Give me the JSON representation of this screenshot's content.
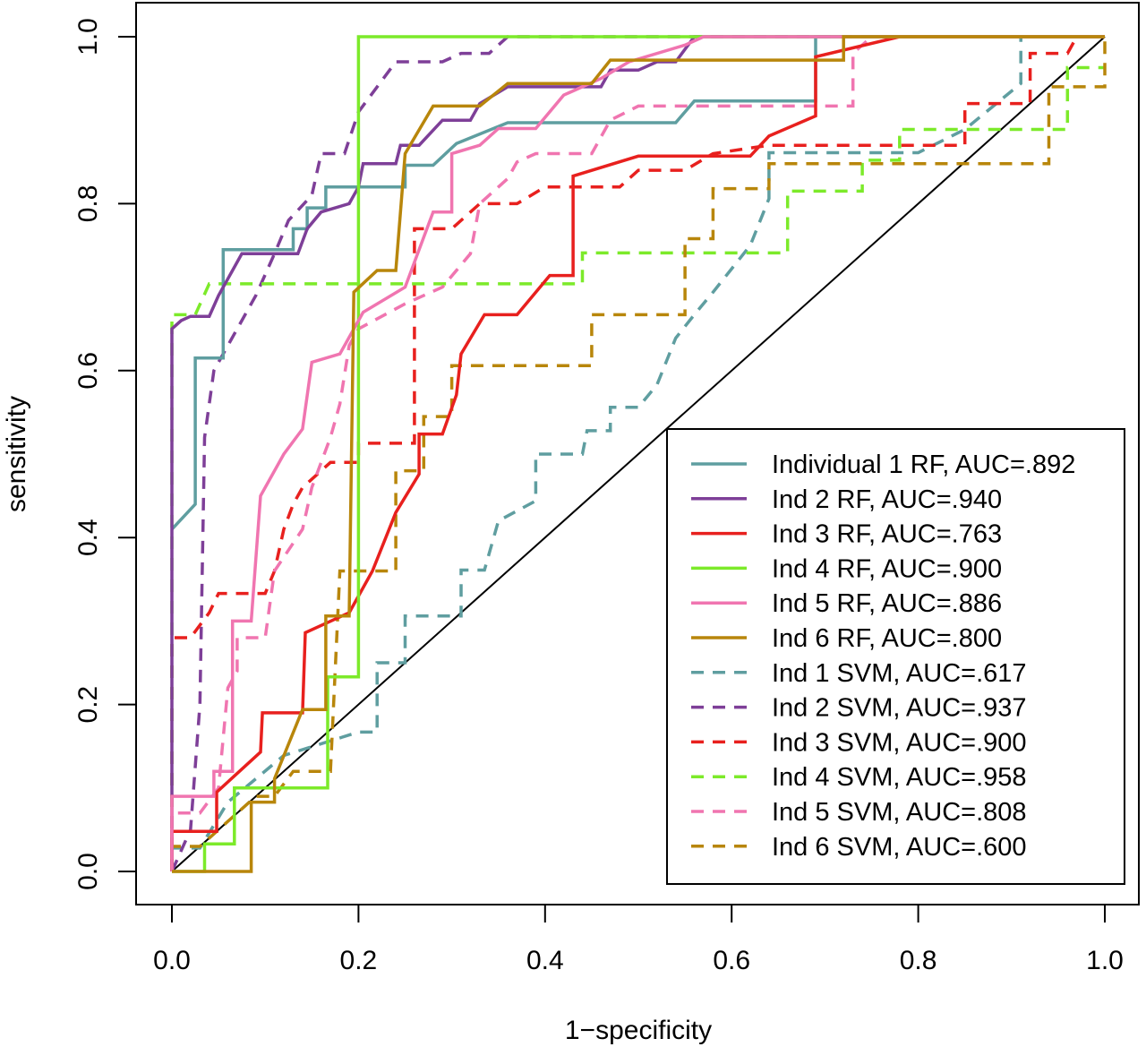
{
  "chart_data": {
    "type": "line",
    "title": "",
    "xlabel": "1−specificity",
    "ylabel": "sensitivity",
    "xlim": [
      0,
      1
    ],
    "ylim": [
      0,
      1
    ],
    "xticks": [
      "0.0",
      "0.2",
      "0.4",
      "0.6",
      "0.8",
      "1.0"
    ],
    "yticks": [
      "0.0",
      "0.2",
      "0.4",
      "0.6",
      "0.8",
      "1.0"
    ],
    "grid": false,
    "legend_position": "bottom-right",
    "reference_line": {
      "from": [
        0,
        0
      ],
      "to": [
        1,
        1
      ],
      "color": "#000000"
    },
    "series": [
      {
        "name": "Individual 1 RF, AUC=.892",
        "color": "#5F9EA0",
        "dash": "solid",
        "points": [
          [
            0,
            0.41
          ],
          [
            0.025,
            0.44
          ],
          [
            0.025,
            0.615
          ],
          [
            0.055,
            0.615
          ],
          [
            0.055,
            0.745
          ],
          [
            0.13,
            0.745
          ],
          [
            0.13,
            0.77
          ],
          [
            0.145,
            0.77
          ],
          [
            0.145,
            0.795
          ],
          [
            0.165,
            0.795
          ],
          [
            0.165,
            0.82
          ],
          [
            0.25,
            0.82
          ],
          [
            0.25,
            0.846
          ],
          [
            0.28,
            0.846
          ],
          [
            0.305,
            0.872
          ],
          [
            0.36,
            0.897
          ],
          [
            0.54,
            0.897
          ],
          [
            0.56,
            0.923
          ],
          [
            0.69,
            0.923
          ],
          [
            0.69,
            1
          ],
          [
            1,
            1
          ]
        ]
      },
      {
        "name": "Ind 2 RF, AUC=.940",
        "color": "#7E3F98",
        "dash": "solid",
        "points": [
          [
            0,
            0
          ],
          [
            0,
            0.65
          ],
          [
            0.01,
            0.66
          ],
          [
            0.02,
            0.665
          ],
          [
            0.04,
            0.665
          ],
          [
            0.05,
            0.69
          ],
          [
            0.065,
            0.72
          ],
          [
            0.075,
            0.74
          ],
          [
            0.135,
            0.74
          ],
          [
            0.145,
            0.77
          ],
          [
            0.16,
            0.79
          ],
          [
            0.19,
            0.8
          ],
          [
            0.2,
            0.82
          ],
          [
            0.205,
            0.848
          ],
          [
            0.24,
            0.848
          ],
          [
            0.245,
            0.87
          ],
          [
            0.265,
            0.87
          ],
          [
            0.29,
            0.9
          ],
          [
            0.32,
            0.9
          ],
          [
            0.33,
            0.92
          ],
          [
            0.36,
            0.94
          ],
          [
            0.46,
            0.94
          ],
          [
            0.47,
            0.96
          ],
          [
            0.5,
            0.96
          ],
          [
            0.52,
            0.97
          ],
          [
            0.54,
            0.97
          ],
          [
            0.56,
            1
          ],
          [
            1,
            1
          ]
        ]
      },
      {
        "name": "Ind 3 RF, AUC=.763",
        "color": "#E8201E",
        "dash": "solid",
        "points": [
          [
            0,
            0
          ],
          [
            0,
            0.048
          ],
          [
            0.048,
            0.048
          ],
          [
            0.048,
            0.095
          ],
          [
            0.095,
            0.143
          ],
          [
            0.097,
            0.19
          ],
          [
            0.14,
            0.19
          ],
          [
            0.143,
            0.286
          ],
          [
            0.19,
            0.31
          ],
          [
            0.215,
            0.36
          ],
          [
            0.24,
            0.43
          ],
          [
            0.265,
            0.476
          ],
          [
            0.265,
            0.524
          ],
          [
            0.29,
            0.524
          ],
          [
            0.305,
            0.571
          ],
          [
            0.31,
            0.62
          ],
          [
            0.335,
            0.667
          ],
          [
            0.37,
            0.667
          ],
          [
            0.405,
            0.714
          ],
          [
            0.43,
            0.714
          ],
          [
            0.43,
            0.833
          ],
          [
            0.5,
            0.857
          ],
          [
            0.62,
            0.857
          ],
          [
            0.64,
            0.881
          ],
          [
            0.69,
            0.905
          ],
          [
            0.69,
            0.976
          ],
          [
            0.78,
            1
          ],
          [
            1,
            1
          ]
        ]
      },
      {
        "name": "Ind 4 RF, AUC=.900",
        "color": "#7CEA2A",
        "dash": "solid",
        "points": [
          [
            0,
            0
          ],
          [
            0.035,
            0
          ],
          [
            0.035,
            0.033
          ],
          [
            0.067,
            0.033
          ],
          [
            0.067,
            0.1
          ],
          [
            0.167,
            0.1
          ],
          [
            0.167,
            0.233
          ],
          [
            0.2,
            0.233
          ],
          [
            0.2,
            1
          ],
          [
            1,
            1
          ]
        ]
      },
      {
        "name": "Ind 5 RF, AUC=.886",
        "color": "#F075B0",
        "dash": "solid",
        "points": [
          [
            0,
            0
          ],
          [
            0,
            0.09
          ],
          [
            0.045,
            0.09
          ],
          [
            0.045,
            0.12
          ],
          [
            0.065,
            0.12
          ],
          [
            0.065,
            0.3
          ],
          [
            0.085,
            0.3
          ],
          [
            0.095,
            0.45
          ],
          [
            0.12,
            0.5
          ],
          [
            0.14,
            0.53
          ],
          [
            0.15,
            0.61
          ],
          [
            0.18,
            0.62
          ],
          [
            0.205,
            0.67
          ],
          [
            0.25,
            0.7
          ],
          [
            0.28,
            0.79
          ],
          [
            0.3,
            0.79
          ],
          [
            0.3,
            0.86
          ],
          [
            0.33,
            0.87
          ],
          [
            0.35,
            0.89
          ],
          [
            0.39,
            0.89
          ],
          [
            0.42,
            0.93
          ],
          [
            0.46,
            0.95
          ],
          [
            0.49,
            0.97
          ],
          [
            0.55,
            0.99
          ],
          [
            0.57,
            1
          ],
          [
            1,
            1
          ]
        ]
      },
      {
        "name": "Ind 6 RF, AUC=.800",
        "color": "#B8860B",
        "dash": "solid",
        "points": [
          [
            0,
            0
          ],
          [
            0.085,
            0
          ],
          [
            0.085,
            0.083
          ],
          [
            0.11,
            0.083
          ],
          [
            0.11,
            0.111
          ],
          [
            0.14,
            0.194
          ],
          [
            0.165,
            0.194
          ],
          [
            0.165,
            0.306
          ],
          [
            0.19,
            0.306
          ],
          [
            0.195,
            0.694
          ],
          [
            0.22,
            0.72
          ],
          [
            0.24,
            0.72
          ],
          [
            0.25,
            0.86
          ],
          [
            0.28,
            0.917
          ],
          [
            0.33,
            0.917
          ],
          [
            0.36,
            0.944
          ],
          [
            0.45,
            0.944
          ],
          [
            0.47,
            0.972
          ],
          [
            0.72,
            0.972
          ],
          [
            0.72,
            1
          ],
          [
            1,
            1
          ]
        ]
      },
      {
        "name": "Ind 1 SVM, AUC=.617",
        "color": "#5F9EA0",
        "dash": "dashed",
        "points": [
          [
            0,
            0
          ],
          [
            0,
            0.028
          ],
          [
            0.03,
            0.028
          ],
          [
            0.06,
            0.083
          ],
          [
            0.12,
            0.139
          ],
          [
            0.2,
            0.167
          ],
          [
            0.22,
            0.167
          ],
          [
            0.22,
            0.25
          ],
          [
            0.25,
            0.25
          ],
          [
            0.25,
            0.306
          ],
          [
            0.31,
            0.306
          ],
          [
            0.31,
            0.361
          ],
          [
            0.335,
            0.361
          ],
          [
            0.35,
            0.42
          ],
          [
            0.39,
            0.444
          ],
          [
            0.39,
            0.5
          ],
          [
            0.44,
            0.5
          ],
          [
            0.445,
            0.528
          ],
          [
            0.47,
            0.528
          ],
          [
            0.47,
            0.556
          ],
          [
            0.5,
            0.556
          ],
          [
            0.52,
            0.583
          ],
          [
            0.53,
            0.611
          ],
          [
            0.54,
            0.639
          ],
          [
            0.56,
            0.667
          ],
          [
            0.58,
            0.694
          ],
          [
            0.6,
            0.722
          ],
          [
            0.62,
            0.75
          ],
          [
            0.64,
            0.806
          ],
          [
            0.64,
            0.861
          ],
          [
            0.8,
            0.861
          ],
          [
            0.85,
            0.889
          ],
          [
            0.91,
            0.944
          ],
          [
            0.91,
            1
          ],
          [
            1,
            1
          ]
        ]
      },
      {
        "name": "Ind 2 SVM, AUC=.937",
        "color": "#7E3F98",
        "dash": "dashed",
        "points": [
          [
            0,
            0
          ],
          [
            0.02,
            0.05
          ],
          [
            0.03,
            0.2
          ],
          [
            0.035,
            0.52
          ],
          [
            0.045,
            0.6
          ],
          [
            0.06,
            0.63
          ],
          [
            0.09,
            0.69
          ],
          [
            0.11,
            0.74
          ],
          [
            0.125,
            0.78
          ],
          [
            0.15,
            0.81
          ],
          [
            0.16,
            0.86
          ],
          [
            0.185,
            0.86
          ],
          [
            0.2,
            0.91
          ],
          [
            0.24,
            0.97
          ],
          [
            0.29,
            0.97
          ],
          [
            0.31,
            0.98
          ],
          [
            0.34,
            0.98
          ],
          [
            0.36,
            1
          ],
          [
            1,
            1
          ]
        ]
      },
      {
        "name": "Ind 3 SVM, AUC=.900",
        "color": "#E8201E",
        "dash": "dashed",
        "points": [
          [
            0,
            0
          ],
          [
            0,
            0.28
          ],
          [
            0.02,
            0.28
          ],
          [
            0.04,
            0.31
          ],
          [
            0.05,
            0.333
          ],
          [
            0.1,
            0.333
          ],
          [
            0.11,
            0.36
          ],
          [
            0.12,
            0.41
          ],
          [
            0.13,
            0.44
          ],
          [
            0.14,
            0.46
          ],
          [
            0.17,
            0.49
          ],
          [
            0.2,
            0.49
          ],
          [
            0.2,
            0.513
          ],
          [
            0.26,
            0.513
          ],
          [
            0.26,
            0.66
          ],
          [
            0.26,
            0.77
          ],
          [
            0.3,
            0.77
          ],
          [
            0.33,
            0.8
          ],
          [
            0.37,
            0.8
          ],
          [
            0.4,
            0.82
          ],
          [
            0.48,
            0.82
          ],
          [
            0.5,
            0.84
          ],
          [
            0.55,
            0.84
          ],
          [
            0.58,
            0.86
          ],
          [
            0.64,
            0.87
          ],
          [
            0.85,
            0.87
          ],
          [
            0.85,
            0.92
          ],
          [
            0.92,
            0.92
          ],
          [
            0.92,
            0.98
          ],
          [
            0.96,
            0.98
          ],
          [
            0.97,
            1
          ],
          [
            1,
            1
          ]
        ]
      },
      {
        "name": "Ind 4 SVM, AUC=.958",
        "color": "#7CEA2A",
        "dash": "dashed",
        "points": [
          [
            0,
            0
          ],
          [
            0,
            0.667
          ],
          [
            0.025,
            0.667
          ],
          [
            0.04,
            0.704
          ],
          [
            0.44,
            0.704
          ],
          [
            0.44,
            0.741
          ],
          [
            0.66,
            0.741
          ],
          [
            0.66,
            0.815
          ],
          [
            0.74,
            0.815
          ],
          [
            0.74,
            0.852
          ],
          [
            0.78,
            0.852
          ],
          [
            0.78,
            0.889
          ],
          [
            0.96,
            0.889
          ],
          [
            0.96,
            0.963
          ],
          [
            1,
            0.963
          ]
        ]
      },
      {
        "name": "Ind 5 SVM, AUC=.808",
        "color": "#F075B0",
        "dash": "dashed",
        "points": [
          [
            0,
            0
          ],
          [
            0,
            0.07
          ],
          [
            0.03,
            0.07
          ],
          [
            0.05,
            0.1
          ],
          [
            0.06,
            0.22
          ],
          [
            0.07,
            0.24
          ],
          [
            0.07,
            0.28
          ],
          [
            0.1,
            0.28
          ],
          [
            0.11,
            0.36
          ],
          [
            0.14,
            0.41
          ],
          [
            0.15,
            0.46
          ],
          [
            0.17,
            0.52
          ],
          [
            0.18,
            0.56
          ],
          [
            0.19,
            0.63
          ],
          [
            0.2,
            0.65
          ],
          [
            0.25,
            0.68
          ],
          [
            0.29,
            0.7
          ],
          [
            0.32,
            0.74
          ],
          [
            0.33,
            0.8
          ],
          [
            0.36,
            0.83
          ],
          [
            0.37,
            0.85
          ],
          [
            0.39,
            0.86
          ],
          [
            0.45,
            0.86
          ],
          [
            0.47,
            0.9
          ],
          [
            0.5,
            0.917
          ],
          [
            0.73,
            0.917
          ],
          [
            0.73,
            0.98
          ],
          [
            0.75,
            1
          ],
          [
            1,
            1
          ]
        ]
      },
      {
        "name": "Ind 6 SVM, AUC=.600",
        "color": "#B8860B",
        "dash": "dashed",
        "points": [
          [
            0,
            0
          ],
          [
            0,
            0.03
          ],
          [
            0.03,
            0.03
          ],
          [
            0.06,
            0.06
          ],
          [
            0.09,
            0.09
          ],
          [
            0.11,
            0.09
          ],
          [
            0.13,
            0.12
          ],
          [
            0.17,
            0.12
          ],
          [
            0.18,
            0.36
          ],
          [
            0.24,
            0.36
          ],
          [
            0.24,
            0.48
          ],
          [
            0.27,
            0.48
          ],
          [
            0.27,
            0.545
          ],
          [
            0.3,
            0.545
          ],
          [
            0.3,
            0.606
          ],
          [
            0.45,
            0.606
          ],
          [
            0.45,
            0.667
          ],
          [
            0.55,
            0.667
          ],
          [
            0.55,
            0.758
          ],
          [
            0.58,
            0.758
          ],
          [
            0.58,
            0.818
          ],
          [
            0.64,
            0.818
          ],
          [
            0.64,
            0.848
          ],
          [
            0.94,
            0.848
          ],
          [
            0.94,
            0.94
          ],
          [
            1,
            0.94
          ],
          [
            1,
            1
          ]
        ]
      }
    ]
  }
}
